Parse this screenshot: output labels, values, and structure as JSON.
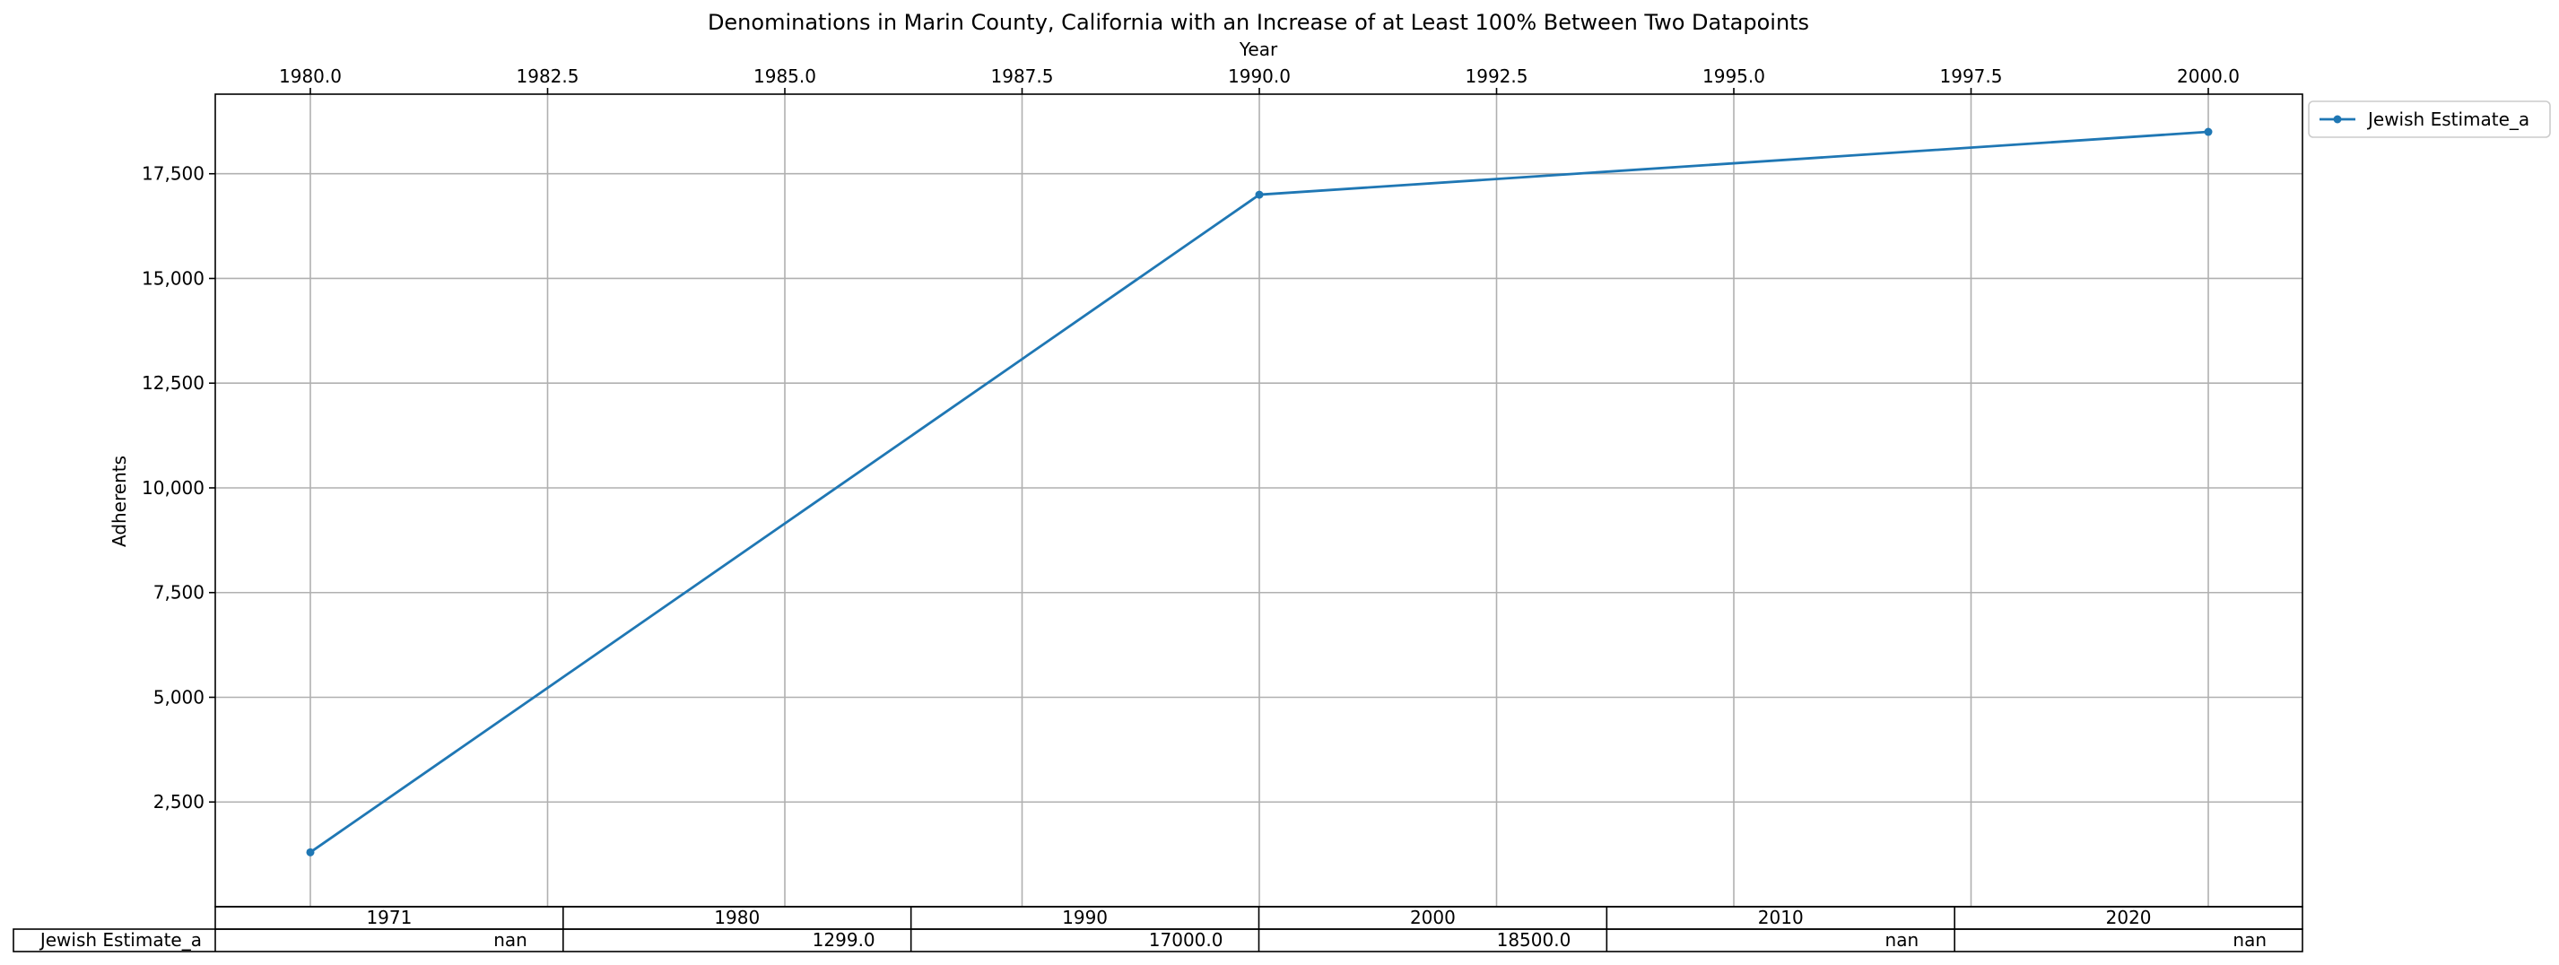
{
  "chart_data": {
    "type": "line",
    "title": "Denominations in Marin County, California with an Increase of at Least 100% Between Two Datapoints",
    "xlabel": "Year",
    "ylabel": "Adherents",
    "xlim": [
      1975.0,
      2005.0
    ],
    "ylim": [
      0,
      19400
    ],
    "x_ticks": [
      1980.0,
      1982.5,
      1985.0,
      1987.5,
      1990.0,
      1992.5,
      1995.0,
      1997.5,
      2000.0
    ],
    "x_tick_labels": [
      "1980.0",
      "1982.5",
      "1985.0",
      "1987.5",
      "1990.0",
      "1992.5",
      "1995.0",
      "1997.5",
      "2000.0"
    ],
    "y_ticks": [
      2500,
      5000,
      7500,
      10000,
      12500,
      15000,
      17500
    ],
    "y_tick_labels": [
      "2,500",
      "5,000",
      "7,500",
      "10,000",
      "12,500",
      "15,000",
      "17,500"
    ],
    "x_axis_position": "top",
    "grid": true,
    "legend_placement": "outside-top-right",
    "series": [
      {
        "name": "Jewish Estimate_a",
        "color": "#1f77b4",
        "marker": "circle",
        "x": [
          1980,
          1990,
          2000
        ],
        "y": [
          1299.0,
          17000.0,
          18500.0
        ]
      }
    ],
    "table": {
      "columns": [
        "1971",
        "1980",
        "1990",
        "2000",
        "2010",
        "2020"
      ],
      "rows": [
        {
          "label": "Jewish Estimate_a",
          "cells": [
            "nan",
            "1299.0",
            "17000.0",
            "18500.0",
            "nan",
            "nan"
          ]
        }
      ]
    }
  }
}
